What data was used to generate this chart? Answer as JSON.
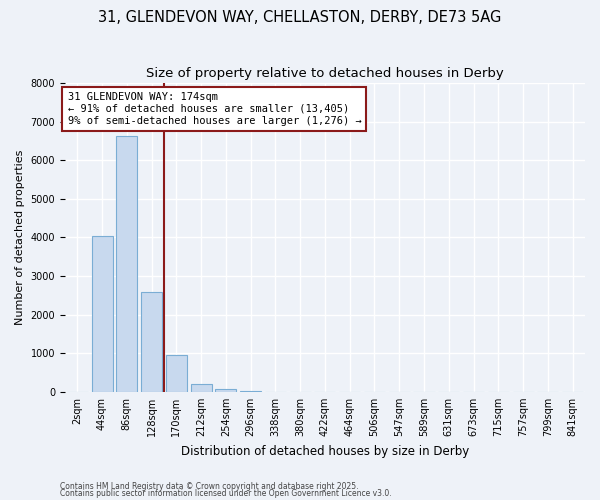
{
  "title1": "31, GLENDEVON WAY, CHELLASTON, DERBY, DE73 5AG",
  "title2": "Size of property relative to detached houses in Derby",
  "xlabel": "Distribution of detached houses by size in Derby",
  "ylabel": "Number of detached properties",
  "bar_color": "#c8d9ee",
  "bar_edge_color": "#7aadd4",
  "vline_color": "#8b1a1a",
  "vline_x_index": 4,
  "annotation_line1": "31 GLENDEVON WAY: 174sqm",
  "annotation_line2": "← 91% of detached houses are smaller (13,405)",
  "annotation_line3": "9% of semi-detached houses are larger (1,276) →",
  "footnote1": "Contains HM Land Registry data © Crown copyright and database right 2025.",
  "footnote2": "Contains public sector information licensed under the Open Government Licence v3.0.",
  "bin_labels": [
    "2sqm",
    "44sqm",
    "86sqm",
    "128sqm",
    "170sqm",
    "212sqm",
    "254sqm",
    "296sqm",
    "338sqm",
    "380sqm",
    "422sqm",
    "464sqm",
    "506sqm",
    "547sqm",
    "589sqm",
    "631sqm",
    "673sqm",
    "715sqm",
    "757sqm",
    "799sqm",
    "841sqm"
  ],
  "counts": [
    5,
    4050,
    6620,
    2580,
    950,
    210,
    60,
    18,
    7,
    3,
    1,
    1,
    0,
    0,
    0,
    0,
    0,
    0,
    0,
    0,
    0
  ],
  "ylim": [
    0,
    8000
  ],
  "yticks": [
    0,
    1000,
    2000,
    3000,
    4000,
    5000,
    6000,
    7000,
    8000
  ],
  "bg_color": "#eef2f8",
  "grid_color": "#ffffff",
  "title_fontsize": 10.5,
  "subtitle_fontsize": 9.5,
  "axis_label_fontsize": 8.5,
  "tick_fontsize": 7,
  "ylabel_fontsize": 8
}
